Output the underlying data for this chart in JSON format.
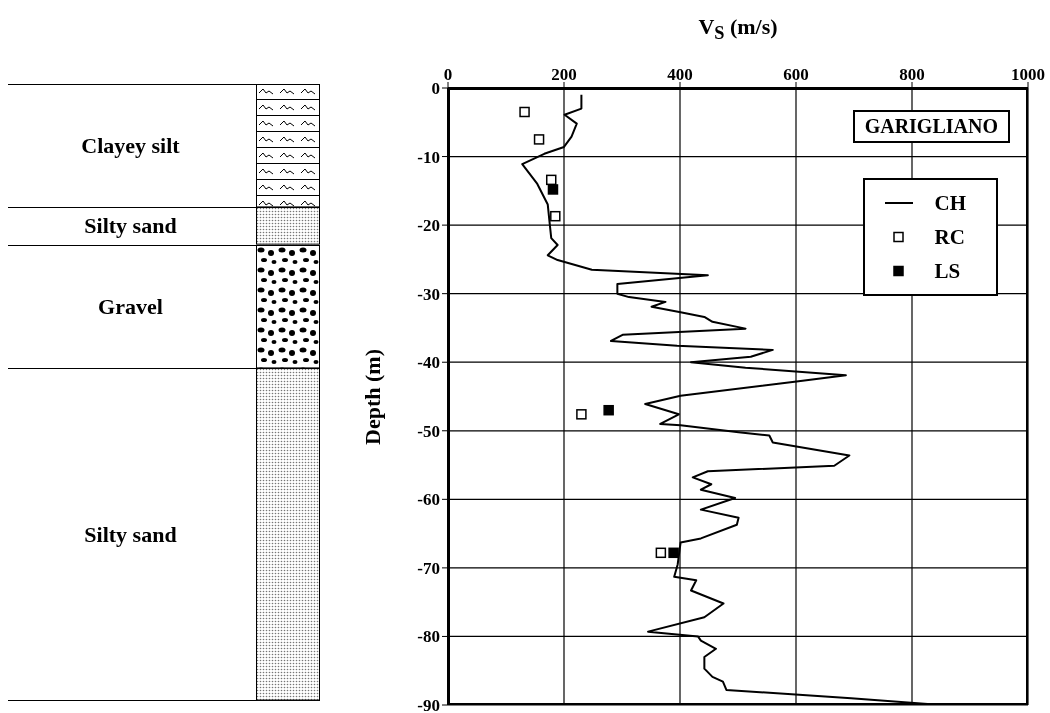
{
  "chart_data": [
    {
      "type": "other",
      "annotations": [
        "Clayey silt",
        "Silty sand",
        "Gravel",
        "Silty sand"
      ]
    },
    {
      "type": "line",
      "xlabel": "V$_{S}$ (m/s)",
      "ylabel": "Depth (m)",
      "annotations": [
        "GARIGLIANO"
      ],
      "xlim": [
        0,
        1000
      ],
      "xticks": [
        0,
        200,
        400,
        600,
        800,
        1000
      ],
      "ylim": [
        -90,
        0
      ],
      "yticks": [
        0,
        -10,
        -20,
        -30,
        -40,
        -50,
        -60,
        -70,
        -80,
        -90
      ],
      "grid": true,
      "legend": "top right",
      "series": [
        {
          "name": "CH",
          "type": "line",
          "color": "#000000",
          "marker": "none",
          "x": [
            230,
            230,
            201,
            222,
            213,
            200,
            166,
            128,
            154,
            172,
            175,
            178,
            189,
            172,
            189,
            248,
            448,
            292,
            292,
            312,
            375,
            351,
            401,
            442,
            456,
            513,
            301,
            281,
            395,
            560,
            522,
            419,
            513,
            686,
            601,
            401,
            340,
            398,
            366,
            401,
            501,
            554,
            560,
            692,
            666,
            448,
            422,
            454,
            436,
            495,
            436,
            501,
            498,
            436,
            401,
            396,
            390,
            428,
            419,
            475,
            442,
            345,
            431,
            436,
            462,
            442,
            442,
            456,
            474,
            480,
            695,
            850
          ],
          "values": [
            -1,
            -3,
            -3.9,
            -5.2,
            -7.1,
            -8.6,
            -9.6,
            -11.1,
            -14,
            -17,
            -19.5,
            -21.9,
            -22.9,
            -24.4,
            -25.1,
            -26.5,
            -27.3,
            -28.6,
            -30,
            -30.5,
            -31.2,
            -31.9,
            -32.7,
            -33.4,
            -34.1,
            -35.1,
            -36,
            -36.9,
            -37.6,
            -38.2,
            -39.2,
            -40,
            -40.8,
            -41.9,
            -42.8,
            -44.9,
            -46.1,
            -47.6,
            -49,
            -49.2,
            -50.2,
            -50.7,
            -51.7,
            -53.6,
            -55.1,
            -55.9,
            -56.8,
            -57.8,
            -58.6,
            -59.8,
            -61.5,
            -62.7,
            -63.7,
            -65.7,
            -66.3,
            -69.5,
            -71.3,
            -71.8,
            -73.3,
            -75.2,
            -77.2,
            -79.3,
            -80,
            -80.6,
            -81.8,
            -83,
            -84.7,
            -85.9,
            -86.6,
            -87.8,
            -89,
            -90
          ]
        },
        {
          "name": "RC",
          "type": "scatter",
          "color": "#ffffff",
          "marker": "square",
          "x": [
            132,
            157,
            178,
            185,
            230,
            367
          ],
          "values": [
            -3.5,
            -7.5,
            -13.4,
            -18.7,
            -47.6,
            -67.8
          ]
        },
        {
          "name": "LS",
          "type": "scatter",
          "color": "#000000",
          "marker": "square",
          "x": [
            181,
            277,
            389
          ],
          "values": [
            -14.8,
            -47,
            -67.8
          ]
        }
      ]
    }
  ]
}
